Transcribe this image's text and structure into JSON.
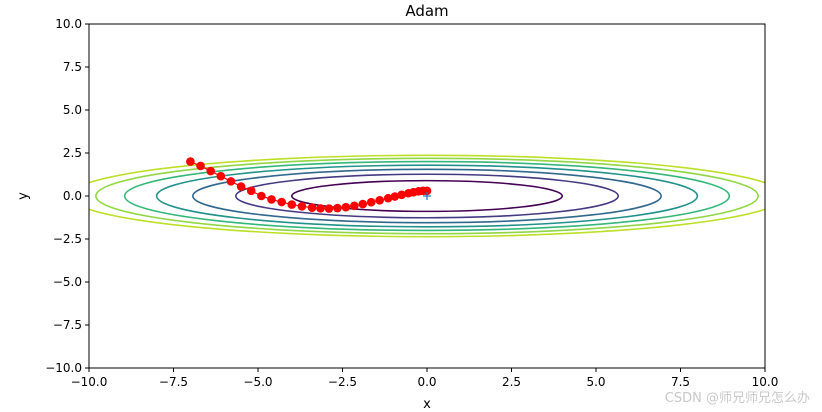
{
  "chart_data": {
    "type": "line",
    "title": "Adam",
    "xlabel": "x",
    "ylabel": "y",
    "xlim": [
      -10,
      10
    ],
    "ylim": [
      -10,
      10
    ],
    "grid": false,
    "xticks": [
      "−10.0",
      "−7.5",
      "−5.0",
      "−2.5",
      "0.0",
      "2.5",
      "5.0",
      "7.5",
      "10.0"
    ],
    "yticks": [
      "−10.0",
      "−7.5",
      "−5.0",
      "−2.5",
      "0.0",
      "2.5",
      "5.0",
      "7.5",
      "10.0"
    ],
    "contours": {
      "function": "x^2/20 + y^2",
      "levels": [
        0.8,
        1.6,
        2.4,
        3.2,
        4.0,
        4.8,
        5.6
      ],
      "colors": [
        "#440154",
        "#443983",
        "#31688e",
        "#21918c",
        "#35b779",
        "#90d743",
        "#bddf26"
      ]
    },
    "minimum_marker": {
      "x": 0,
      "y": 0,
      "marker": "+",
      "color": "#1f77b4"
    },
    "path": {
      "marker_color": "#ff0000",
      "line_color": "#ff0000",
      "points": [
        [
          -7.0,
          2.0
        ],
        [
          -6.7,
          1.75
        ],
        [
          -6.4,
          1.45
        ],
        [
          -6.1,
          1.15
        ],
        [
          -5.8,
          0.85
        ],
        [
          -5.5,
          0.55
        ],
        [
          -5.2,
          0.3
        ],
        [
          -4.9,
          0.0
        ],
        [
          -4.6,
          -0.2
        ],
        [
          -4.3,
          -0.35
        ],
        [
          -4.0,
          -0.5
        ],
        [
          -3.7,
          -0.6
        ],
        [
          -3.4,
          -0.68
        ],
        [
          -3.15,
          -0.72
        ],
        [
          -2.9,
          -0.73
        ],
        [
          -2.65,
          -0.7
        ],
        [
          -2.4,
          -0.65
        ],
        [
          -2.15,
          -0.57
        ],
        [
          -1.9,
          -0.47
        ],
        [
          -1.65,
          -0.36
        ],
        [
          -1.4,
          -0.25
        ],
        [
          -1.15,
          -0.13
        ],
        [
          -0.95,
          -0.03
        ],
        [
          -0.75,
          0.07
        ],
        [
          -0.55,
          0.16
        ],
        [
          -0.4,
          0.22
        ],
        [
          -0.25,
          0.27
        ],
        [
          -0.12,
          0.3
        ],
        [
          0.0,
          0.3
        ]
      ]
    }
  },
  "watermark": "CSDN @师兄师兄怎么办"
}
